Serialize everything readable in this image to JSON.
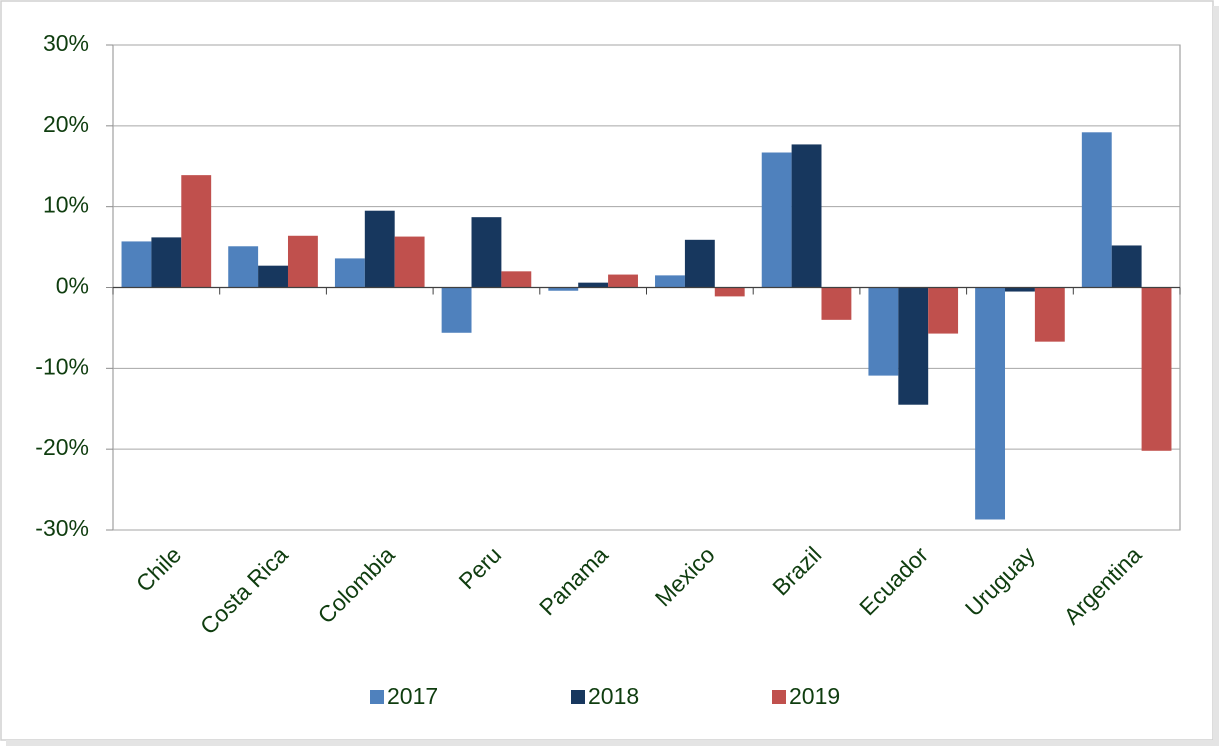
{
  "chart_data": {
    "type": "bar",
    "categories": [
      "Chile",
      "Costa Rica",
      "Colombia",
      "Peru",
      "Panama",
      "Mexico",
      "Brazil",
      "Ecuador",
      "Uruguay",
      "Argentina"
    ],
    "series": [
      {
        "name": "2017",
        "color": "#4f81bd",
        "values": [
          5.7,
          5.1,
          3.6,
          -5.6,
          -0.4,
          1.5,
          16.7,
          -10.9,
          -28.7,
          19.2
        ]
      },
      {
        "name": "2018",
        "color": "#17375e",
        "values": [
          6.2,
          2.7,
          9.5,
          8.7,
          0.6,
          5.9,
          17.7,
          -14.5,
          -0.5,
          5.2
        ]
      },
      {
        "name": "2019",
        "color": "#c0504d",
        "values": [
          13.9,
          6.4,
          6.3,
          2.0,
          1.6,
          -1.1,
          -4.0,
          -5.7,
          -6.7,
          -20.2
        ]
      }
    ],
    "ylim": [
      -30,
      30
    ],
    "yticks": [
      {
        "value": -30,
        "label": "-30%"
      },
      {
        "value": -20,
        "label": "-20%"
      },
      {
        "value": -10,
        "label": "-10%"
      },
      {
        "value": 0,
        "label": "0%"
      },
      {
        "value": 10,
        "label": "10%"
      },
      {
        "value": 20,
        "label": "20%"
      },
      {
        "value": 30,
        "label": "30%"
      }
    ],
    "grid": true,
    "legend": "bottom"
  }
}
